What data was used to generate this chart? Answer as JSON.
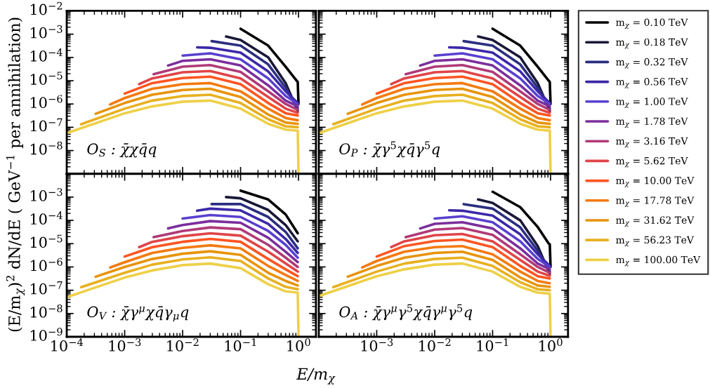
{
  "chart_data": [
    {
      "type": "line",
      "log": "xy",
      "legend": "right",
      "ylabel": "(E/m$_{χ}$)$^{2}$ dN/dE ( GeV$^{−1}$ per annihilation)",
      "tick_labels": "y",
      "annotations": [
        "O$_{S}$ : χ̄χq̄q"
      ],
      "xlim": [
        0.0001,
        2
      ],
      "ylim": [
        1e-09,
        0.01
      ],
      "xticks": [
        0.0001,
        0.001,
        0.01,
        0.1,
        1
      ],
      "yticks": [
        {
          "value": 1e-09,
          "label": null
        },
        {
          "value": 1e-08,
          "label": "10$^{−8}$"
        },
        {
          "value": 1e-07,
          "label": "10$^{−7}$"
        },
        {
          "value": 1e-06,
          "label": "10$^{−6}$"
        },
        {
          "value": 1e-05,
          "label": "10$^{−5}$"
        },
        {
          "value": 0.0001,
          "label": "10$^{−4}$"
        },
        {
          "value": 0.001,
          "label": "10$^{−3}$"
        },
        {
          "value": 0.01,
          "label": "10$^{−2}$"
        }
      ],
      "series": [
        {
          "name": "m$_{χ}$ = 0.10 TeV",
          "color": "#000000",
          "x": [
            0.1,
            0.3,
            0.6,
            0.93,
            0.97,
            1
          ],
          "values": [
            0.0017,
            0.00032,
            4e-05,
            1e-05,
            8.9e-06,
            1e-06
          ]
        },
        {
          "name": "m$_{χ}$ = 0.18 TeV",
          "color": "#1a1838",
          "x": [
            0.0562,
            0.1,
            0.3,
            0.6,
            0.97
          ],
          "values": [
            0.00079,
            0.00056,
            0.0001,
            7.9e-06,
            5e-07
          ]
        },
        {
          "name": "m$_{χ}$ = 0.32 TeV",
          "color": "#2b2f80",
          "x": [
            0.0316,
            0.1,
            0.3,
            0.6,
            0.97
          ],
          "values": [
            0.0005,
            0.00032,
            5e-05,
            5e-06,
            6.3e-07
          ]
        },
        {
          "name": "m$_{χ}$ = 0.56 TeV",
          "color": "#3a28a8",
          "x": [
            0.0178,
            0.03,
            0.1,
            0.3,
            0.6,
            0.97
          ],
          "values": [
            0.00027,
            0.00026,
            0.00016,
            2.5e-05,
            3.5e-06,
            1.1e-06
          ]
        },
        {
          "name": "m$_{χ}$ = 1.00 TeV",
          "color": "#5a40d0",
          "x": [
            0.01,
            0.03,
            0.1,
            0.3,
            0.6,
            0.97
          ],
          "values": [
            0.00012,
            0.00015,
            8.3e-05,
            1.26e-05,
            2.2e-06,
            1e-06
          ]
        },
        {
          "name": "m$_{χ}$ = 1.78 TeV",
          "color": "#7b2e9c",
          "x": [
            0.00562,
            0.01,
            0.03,
            0.1,
            0.3,
            0.6,
            0.97
          ],
          "values": [
            4.5e-05,
            7.1e-05,
            8.3e-05,
            4.5e-05,
            6.3e-06,
            1.4e-06,
            7.9e-07
          ]
        },
        {
          "name": "m$_{χ}$ = 3.16 TeV",
          "color": "#b03a78",
          "x": [
            0.00316,
            0.01,
            0.03,
            0.1,
            0.3,
            0.6,
            0.97
          ],
          "values": [
            1.9e-05,
            4e-05,
            4.7e-05,
            2.4e-05,
            3.5e-06,
            1e-06,
            5.6e-07
          ]
        },
        {
          "name": "m$_{χ}$ = 5.62 TeV",
          "color": "#e04448",
          "x": [
            0.00178,
            0.003,
            0.01,
            0.03,
            0.1,
            0.3,
            0.6,
            0.97
          ],
          "values": [
            7.1e-06,
            1.26e-05,
            2.3e-05,
            2.6e-05,
            1.26e-05,
            2e-06,
            6.3e-07,
            4.2e-07
          ]
        },
        {
          "name": "m$_{χ}$ = 10.00 TeV",
          "color": "#ff5522",
          "x": [
            0.001,
            0.003,
            0.01,
            0.03,
            0.1,
            0.3,
            0.6,
            0.97
          ],
          "values": [
            2.8e-06,
            7.9e-06,
            1.3e-05,
            1.5e-05,
            7.1e-06,
            1.1e-06,
            4e-07,
            3.2e-07
          ]
        },
        {
          "name": "m$_{χ}$ = 17.78 TeV",
          "color": "#f47a10",
          "x": [
            0.000562,
            0.001,
            0.003,
            0.01,
            0.03,
            0.1,
            0.3,
            0.6,
            0.97
          ],
          "values": [
            9.5e-07,
            1.8e-06,
            4.5e-06,
            7.1e-06,
            7.9e-06,
            3.5e-06,
            6.3e-07,
            2.5e-07,
            2e-07
          ]
        },
        {
          "name": "m$_{χ}$ = 31.62 TeV",
          "color": "#e8930a",
          "x": [
            0.000316,
            0.001,
            0.003,
            0.01,
            0.03,
            0.1,
            0.3,
            0.6,
            0.97
          ],
          "values": [
            3.8e-07,
            1.1e-06,
            2.5e-06,
            4e-06,
            4.5e-06,
            2e-06,
            3.5e-07,
            1.6e-07,
            1.4e-07
          ]
        },
        {
          "name": "m$_{χ}$ = 56.23 TeV",
          "color": "#e8b020",
          "x": [
            0.000178,
            0.001,
            0.003,
            0.01,
            0.03,
            0.1,
            0.3,
            0.6,
            0.97
          ],
          "values": [
            1.35e-07,
            6.3e-07,
            1.4e-06,
            2.2e-06,
            2.5e-06,
            1.1e-06,
            2.2e-07,
            1.1e-07,
            1e-07
          ]
        },
        {
          "name": "m$_{χ}$ = 100.00 TeV",
          "color": "#eed048",
          "x": [
            0.0001,
            0.001,
            0.003,
            0.01,
            0.03,
            0.1,
            0.3,
            0.6,
            0.97,
            1
          ],
          "values": [
            5.6e-08,
            4e-07,
            7.9e-07,
            1.26e-06,
            1.4e-06,
            6.3e-07,
            1.4e-07,
            7.9e-08,
            7.1e-08,
            1e-09
          ]
        }
      ]
    },
    {
      "type": "line",
      "log": "xy",
      "tick_labels": false,
      "annotations": [
        "O$_{P}$ : χ̄γ$^{5}$χq̄γ$^{5}$q"
      ],
      "xlim": [
        0.0001,
        2
      ],
      "ylim": [
        1e-09,
        0.01
      ],
      "xticks": [
        0.001,
        0.01,
        0.1,
        1
      ],
      "yticks": [
        1e-09,
        1e-08,
        1e-07,
        1e-06,
        1e-05,
        0.0001,
        0.001,
        0.01
      ],
      "series": [
        {
          "color": "#000000",
          "x": [
            0.1,
            0.3,
            0.6,
            0.93,
            0.97,
            1
          ],
          "values": [
            0.0017,
            0.00032,
            4e-05,
            1e-05,
            8.9e-06,
            1e-06
          ]
        },
        {
          "color": "#1a1838",
          "x": [
            0.0562,
            0.1,
            0.3,
            0.6,
            0.97
          ],
          "values": [
            0.00079,
            0.00056,
            0.0001,
            7.9e-06,
            5e-07
          ]
        },
        {
          "color": "#2b2f80",
          "x": [
            0.0316,
            0.1,
            0.3,
            0.6,
            0.97
          ],
          "values": [
            0.0005,
            0.00032,
            5e-05,
            5e-06,
            6.3e-07
          ]
        },
        {
          "color": "#3a28a8",
          "x": [
            0.0178,
            0.03,
            0.1,
            0.3,
            0.6,
            0.97
          ],
          "values": [
            0.00027,
            0.00026,
            0.00016,
            2.5e-05,
            3.5e-06,
            1.1e-06
          ]
        },
        {
          "color": "#5a40d0",
          "x": [
            0.01,
            0.03,
            0.1,
            0.3,
            0.6,
            0.97
          ],
          "values": [
            0.00012,
            0.00015,
            8.3e-05,
            1.26e-05,
            2.2e-06,
            1e-06
          ]
        },
        {
          "color": "#7b2e9c",
          "x": [
            0.00562,
            0.01,
            0.03,
            0.1,
            0.3,
            0.6,
            0.97
          ],
          "values": [
            4.5e-05,
            7.1e-05,
            8.3e-05,
            4.5e-05,
            6.3e-06,
            1.4e-06,
            7.9e-07
          ]
        },
        {
          "color": "#b03a78",
          "x": [
            0.00316,
            0.01,
            0.03,
            0.1,
            0.3,
            0.6,
            0.97
          ],
          "values": [
            1.9e-05,
            4e-05,
            4.7e-05,
            2.4e-05,
            3.5e-06,
            1e-06,
            5.6e-07
          ]
        },
        {
          "color": "#e04448",
          "x": [
            0.00178,
            0.003,
            0.01,
            0.03,
            0.1,
            0.3,
            0.6,
            0.97
          ],
          "values": [
            7.1e-06,
            1.26e-05,
            2.3e-05,
            2.6e-05,
            1.26e-05,
            2e-06,
            6.3e-07,
            4.2e-07
          ]
        },
        {
          "color": "#ff5522",
          "x": [
            0.001,
            0.003,
            0.01,
            0.03,
            0.1,
            0.3,
            0.6,
            0.97
          ],
          "values": [
            2.8e-06,
            7.9e-06,
            1.3e-05,
            1.5e-05,
            7.1e-06,
            1.1e-06,
            4e-07,
            3.2e-07
          ]
        },
        {
          "color": "#f47a10",
          "x": [
            0.000562,
            0.001,
            0.003,
            0.01,
            0.03,
            0.1,
            0.3,
            0.6,
            0.97
          ],
          "values": [
            9.5e-07,
            1.8e-06,
            4.5e-06,
            7.1e-06,
            7.9e-06,
            3.5e-06,
            6.3e-07,
            2.5e-07,
            2e-07
          ]
        },
        {
          "color": "#e8930a",
          "x": [
            0.000316,
            0.001,
            0.003,
            0.01,
            0.03,
            0.1,
            0.3,
            0.6,
            0.97
          ],
          "values": [
            3.8e-07,
            1.1e-06,
            2.5e-06,
            4e-06,
            4.5e-06,
            2e-06,
            3.5e-07,
            1.6e-07,
            1.4e-07
          ]
        },
        {
          "color": "#e8b020",
          "x": [
            0.000178,
            0.001,
            0.003,
            0.01,
            0.03,
            0.1,
            0.3,
            0.6,
            0.97
          ],
          "values": [
            1.35e-07,
            6.3e-07,
            1.4e-06,
            2.2e-06,
            2.5e-06,
            1.1e-06,
            2.2e-07,
            1.1e-07,
            1e-07
          ]
        },
        {
          "color": "#eed048",
          "x": [
            0.0001,
            0.001,
            0.003,
            0.01,
            0.03,
            0.1,
            0.3,
            0.6,
            0.97,
            1
          ],
          "values": [
            5.6e-08,
            4e-07,
            7.9e-07,
            1.26e-06,
            1.4e-06,
            6.3e-07,
            1.4e-07,
            7.9e-08,
            7.1e-08,
            1e-09
          ]
        }
      ]
    },
    {
      "type": "line",
      "log": "xy",
      "xlabel": "E/m$_{χ}$",
      "annotations": [
        "O$_{V}$ : χ̄γ$^{μ}$χq̄γ$_{μ}$q"
      ],
      "xlim": [
        0.0001,
        2
      ],
      "ylim": [
        1e-09,
        0.01
      ],
      "xticks": [
        {
          "value": 0.0001,
          "label": "10$^{−4}$"
        },
        {
          "value": 0.001,
          "label": "10$^{−3}$"
        },
        {
          "value": 0.01,
          "label": "10$^{−2}$"
        },
        {
          "value": 0.1,
          "label": "10$^{−1}$"
        },
        {
          "value": 1,
          "label": "10$^{0}$"
        }
      ],
      "yticks": [
        {
          "value": 1e-09,
          "label": "10$^{−9}$"
        },
        {
          "value": 1e-08,
          "label": "10$^{−8}$"
        },
        {
          "value": 1e-07,
          "label": "10$^{−7}$"
        },
        {
          "value": 1e-06,
          "label": "10$^{−6}$"
        },
        {
          "value": 1e-05,
          "label": "10$^{−5}$"
        },
        {
          "value": 0.0001,
          "label": "10$^{−4}$"
        },
        {
          "value": 0.001,
          "label": "10$^{−3}$"
        },
        {
          "value": 0.01,
          "label": null
        }
      ],
      "series": [
        {
          "color": "#000000",
          "x": [
            0.1,
            0.3,
            0.6,
            0.97
          ],
          "values": [
            0.0019,
            0.00079,
            0.00018,
            2.8e-05
          ]
        },
        {
          "color": "#1a1838",
          "x": [
            0.0562,
            0.1,
            0.3,
            0.6,
            0.97
          ],
          "values": [
            0.001,
            0.00089,
            0.00028,
            6.3e-05,
            1.26e-05
          ]
        },
        {
          "color": "#2b2f80",
          "x": [
            0.0316,
            0.1,
            0.3,
            0.6,
            0.97
          ],
          "values": [
            0.0005,
            0.0005,
            0.00014,
            3.2e-05,
            6.3e-06
          ]
        },
        {
          "color": "#3a28a8",
          "x": [
            0.0178,
            0.03,
            0.1,
            0.3,
            0.6,
            0.97
          ],
          "values": [
            0.00026,
            0.00032,
            0.00027,
            7.1e-05,
            1.6e-05,
            4e-06
          ]
        },
        {
          "color": "#5a40d0",
          "x": [
            0.01,
            0.03,
            0.1,
            0.3,
            0.6,
            0.97
          ],
          "values": [
            0.00012,
            0.00017,
            0.00014,
            3.5e-05,
            8.9e-06,
            2.5e-06
          ]
        },
        {
          "color": "#7b2e9c",
          "x": [
            0.00562,
            0.01,
            0.03,
            0.1,
            0.3,
            0.6,
            0.97
          ],
          "values": [
            4.5e-05,
            6.3e-05,
            9.3e-05,
            7.9e-05,
            1.8e-05,
            4.5e-06,
            1.6e-06
          ]
        },
        {
          "color": "#b03a78",
          "x": [
            0.00316,
            0.01,
            0.03,
            0.1,
            0.3,
            0.6,
            0.97
          ],
          "values": [
            1.9e-05,
            3.5e-05,
            5e-05,
            4.2e-05,
            8.9e-06,
            2.5e-06,
            1e-06
          ]
        },
        {
          "color": "#e04448",
          "x": [
            0.00178,
            0.003,
            0.01,
            0.03,
            0.1,
            0.3,
            0.6,
            0.97
          ],
          "values": [
            7.1e-06,
            1.2e-05,
            2.1e-05,
            2.8e-05,
            2.2e-05,
            4.5e-06,
            1.4e-06,
            6.3e-07
          ]
        },
        {
          "color": "#ff5522",
          "x": [
            0.001,
            0.003,
            0.01,
            0.03,
            0.1,
            0.3,
            0.6,
            0.97
          ],
          "values": [
            2.8e-06,
            7.1e-06,
            1.2e-05,
            1.6e-05,
            1.2e-05,
            2.2e-06,
            7.9e-07,
            4e-07
          ]
        },
        {
          "color": "#f47a10",
          "x": [
            0.000562,
            0.001,
            0.003,
            0.01,
            0.03,
            0.1,
            0.3,
            0.6,
            0.97
          ],
          "values": [
            9.5e-07,
            1.6e-06,
            4e-06,
            6.6e-06,
            8.5e-06,
            6.3e-06,
            1.1e-06,
            4.5e-07,
            2.5e-07
          ]
        },
        {
          "color": "#e8930a",
          "x": [
            0.000316,
            0.001,
            0.003,
            0.01,
            0.03,
            0.1,
            0.3,
            0.6,
            0.97
          ],
          "values": [
            3.8e-07,
            1e-06,
            2.2e-06,
            3.7e-06,
            4.7e-06,
            3.3e-06,
            5.6e-07,
            2.5e-07,
            1.6e-07
          ]
        },
        {
          "color": "#e8b020",
          "x": [
            0.000178,
            0.001,
            0.003,
            0.01,
            0.03,
            0.1,
            0.3,
            0.6,
            0.97
          ],
          "values": [
            1.35e-07,
            5.6e-07,
            1.26e-06,
            2.1e-06,
            2.6e-06,
            1.8e-06,
            3.2e-07,
            1.4e-07,
            1.1e-07
          ]
        },
        {
          "color": "#eed048",
          "x": [
            0.0001,
            0.001,
            0.003,
            0.01,
            0.03,
            0.1,
            0.3,
            0.6,
            0.97,
            1
          ],
          "values": [
            5e-08,
            3.5e-07,
            7.1e-07,
            1.2e-06,
            1.4e-06,
            8.9e-07,
            1.8e-07,
            8.9e-08,
            7.9e-08,
            1e-09
          ]
        }
      ]
    },
    {
      "type": "line",
      "log": "xy",
      "tick_labels": "x",
      "annotations": [
        "O$_{A}$ : χ̄γ$^{μ}$γ$^{5}$χq̄γ$^{μ}$γ$^{5}$q"
      ],
      "xlim": [
        0.0001,
        2
      ],
      "ylim": [
        1e-09,
        0.01
      ],
      "xticks": [
        {
          "value": 0.001,
          "label": "10$^{−3}$"
        },
        {
          "value": 0.01,
          "label": "10$^{−2}$"
        },
        {
          "value": 0.1,
          "label": "10$^{−1}$"
        },
        {
          "value": 1,
          "label": "10$^{0}$"
        }
      ],
      "yticks": [
        1e-09,
        1e-08,
        1e-07,
        1e-06,
        1e-05,
        0.0001,
        0.001,
        0.01
      ],
      "series": [
        {
          "color": "#000000",
          "x": [
            0.1,
            0.3,
            0.6,
            0.93,
            0.97,
            1
          ],
          "values": [
            0.0017,
            0.00037,
            5.2e-05,
            1e-05,
            9.3e-06,
            1e-06
          ]
        },
        {
          "color": "#1a1838",
          "x": [
            0.0562,
            0.1,
            0.3,
            0.6,
            0.97
          ],
          "values": [
            0.00079,
            0.00056,
            0.0001,
            7.9e-06,
            5e-07
          ]
        },
        {
          "color": "#2b2f80",
          "x": [
            0.0316,
            0.1,
            0.3,
            0.6,
            0.97
          ],
          "values": [
            0.0005,
            0.00032,
            5e-05,
            5e-06,
            6.3e-07
          ]
        },
        {
          "color": "#3a28a8",
          "x": [
            0.0178,
            0.03,
            0.1,
            0.3,
            0.6,
            0.97
          ],
          "values": [
            0.00027,
            0.00026,
            0.00016,
            2.5e-05,
            3.5e-06,
            1.1e-06
          ]
        },
        {
          "color": "#5a40d0",
          "x": [
            0.01,
            0.03,
            0.1,
            0.3,
            0.6,
            0.97
          ],
          "values": [
            0.00012,
            0.00015,
            8.3e-05,
            1.26e-05,
            2.2e-06,
            1e-06
          ]
        },
        {
          "color": "#7b2e9c",
          "x": [
            0.00562,
            0.01,
            0.03,
            0.1,
            0.3,
            0.6,
            0.97
          ],
          "values": [
            4.5e-05,
            7.1e-05,
            8.3e-05,
            4.5e-05,
            6.3e-06,
            1.4e-06,
            7.9e-07
          ]
        },
        {
          "color": "#b03a78",
          "x": [
            0.00316,
            0.01,
            0.03,
            0.1,
            0.3,
            0.6,
            0.97
          ],
          "values": [
            1.9e-05,
            4e-05,
            4.7e-05,
            2.4e-05,
            3.5e-06,
            1e-06,
            5.6e-07
          ]
        },
        {
          "color": "#e04448",
          "x": [
            0.00178,
            0.003,
            0.01,
            0.03,
            0.1,
            0.3,
            0.6,
            0.97
          ],
          "values": [
            7.1e-06,
            1.26e-05,
            2.3e-05,
            2.6e-05,
            1.26e-05,
            2e-06,
            6.3e-07,
            4.2e-07
          ]
        },
        {
          "color": "#ff5522",
          "x": [
            0.001,
            0.003,
            0.01,
            0.03,
            0.1,
            0.3,
            0.6,
            0.97
          ],
          "values": [
            2.8e-06,
            7.9e-06,
            1.3e-05,
            1.5e-05,
            7.1e-06,
            1.1e-06,
            4e-07,
            3.2e-07
          ]
        },
        {
          "color": "#f47a10",
          "x": [
            0.000562,
            0.001,
            0.003,
            0.01,
            0.03,
            0.1,
            0.3,
            0.6,
            0.97
          ],
          "values": [
            9.5e-07,
            1.8e-06,
            4.5e-06,
            7.1e-06,
            7.9e-06,
            3.5e-06,
            6.3e-07,
            2.5e-07,
            2e-07
          ]
        },
        {
          "color": "#e8930a",
          "x": [
            0.000316,
            0.001,
            0.003,
            0.01,
            0.03,
            0.1,
            0.3,
            0.6,
            0.97
          ],
          "values": [
            3.8e-07,
            1.1e-06,
            2.5e-06,
            4e-06,
            4.5e-06,
            2e-06,
            3.5e-07,
            1.6e-07,
            1.4e-07
          ]
        },
        {
          "color": "#e8b020",
          "x": [
            0.000178,
            0.001,
            0.003,
            0.01,
            0.03,
            0.1,
            0.3,
            0.6,
            0.97
          ],
          "values": [
            1.35e-07,
            6.3e-07,
            1.4e-06,
            2.2e-06,
            2.5e-06,
            1.1e-06,
            2.2e-07,
            1.1e-07,
            1e-07
          ]
        },
        {
          "color": "#eed048",
          "x": [
            0.0001,
            0.001,
            0.003,
            0.01,
            0.03,
            0.1,
            0.3,
            0.6,
            0.97,
            1
          ],
          "values": [
            5.6e-08,
            4e-07,
            7.9e-07,
            1.26e-06,
            1.4e-06,
            6.3e-07,
            1.4e-07,
            7.9e-08,
            7.1e-08,
            1e-09
          ]
        }
      ]
    }
  ]
}
